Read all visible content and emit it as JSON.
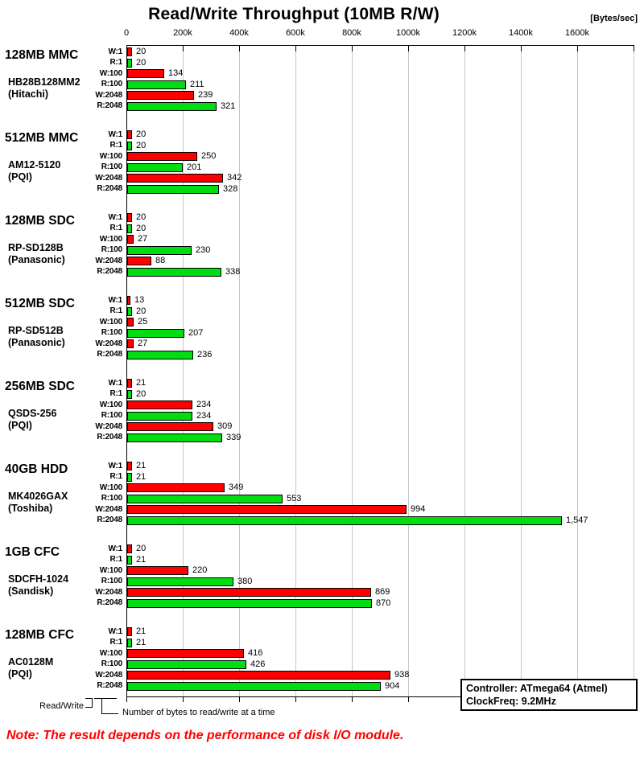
{
  "title": "Read/Write Throughput (10MB R/W)",
  "unit_label": "[Bytes/sec]",
  "note": "Note: The result depends on the performance of disk I/O module.",
  "info_box": {
    "line1": "Controller: ATmega64 (Atmel)",
    "line2": "ClockFreq: 9.2MHz"
  },
  "footer": {
    "read_write_label": "Read/Write",
    "bytes_label": "Number of bytes to read/write at a time"
  },
  "chart_data": {
    "type": "bar",
    "orientation": "horizontal",
    "title": "Read/Write Throughput (10MB R/W)",
    "value_unit": "Bytes/sec",
    "value_scale_note": "bar labels are in kBytes/sec (plotted against the k-axis)",
    "axis_ticks": [
      "0",
      "200k",
      "400k",
      "600k",
      "800k",
      "1000k",
      "1200k",
      "1400k",
      "1600k"
    ],
    "xlim_k": [
      0,
      1800
    ],
    "grid": true,
    "bar_labels": [
      "W:1",
      "R:1",
      "W:100",
      "R:100",
      "W:2048",
      "R:2048"
    ],
    "colors": {
      "write": "#ff0000",
      "read": "#00dd11",
      "gridline": "#c6c6c6",
      "axis": "#000000",
      "note_red": "#ff0000"
    },
    "groups": [
      {
        "name": "128MB MMC",
        "model": "HB28B128MM2",
        "maker": "(Hitachi)",
        "values": [
          20,
          20,
          134,
          211,
          239,
          321
        ]
      },
      {
        "name": "512MB MMC",
        "model": "AM12-5120",
        "maker": "(PQI)",
        "values": [
          20,
          20,
          250,
          201,
          342,
          328
        ]
      },
      {
        "name": "128MB SDC",
        "model": "RP-SD128B",
        "maker": "(Panasonic)",
        "values": [
          20,
          20,
          27,
          230,
          88,
          338
        ]
      },
      {
        "name": "512MB SDC",
        "model": "RP-SD512B",
        "maker": "(Panasonic)",
        "values": [
          13,
          20,
          25,
          207,
          27,
          236
        ]
      },
      {
        "name": "256MB SDC",
        "model": "QSDS-256",
        "maker": "(PQI)",
        "values": [
          21,
          20,
          234,
          234,
          309,
          339
        ]
      },
      {
        "name": "40GB HDD",
        "model": "MK4026GAX",
        "maker": "(Toshiba)",
        "values": [
          21,
          21,
          349,
          553,
          994,
          1547
        ]
      },
      {
        "name": "1GB CFC",
        "model": "SDCFH-1024",
        "maker": "(Sandisk)",
        "values": [
          20,
          21,
          220,
          380,
          869,
          870
        ]
      },
      {
        "name": "128MB CFC",
        "model": "AC0128M",
        "maker": "(PQI)",
        "values": [
          21,
          21,
          416,
          426,
          938,
          904
        ]
      }
    ]
  }
}
